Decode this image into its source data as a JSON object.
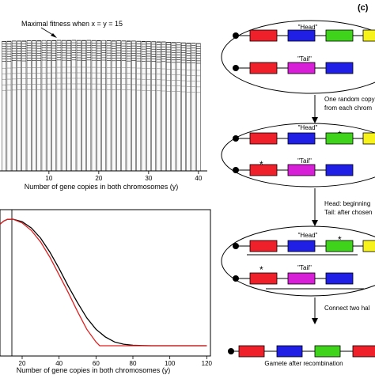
{
  "top_left": {
    "annotation": "Maximal fitness when x = y = 15",
    "xlabel": "Number of gene copies in both chromosomes (y)"
  },
  "bottom_left": {
    "xlabel": "Number of gene copies in both chromosomes (y)"
  },
  "panel_c": {
    "label": "(c)",
    "head_label": "\"Head\"",
    "tail_label": "\"Tail\"",
    "step1_lines": [
      "One random copy",
      "from each chrom"
    ],
    "step2_lines": [
      "Head: beginning",
      "Tail: after chosen"
    ],
    "step3_label": "Connect two hal",
    "gamete_label": "Gamete after recombination",
    "asterisk": "*"
  },
  "colors": {
    "red": "#f0202a",
    "blue": "#1f1fe6",
    "green": "#3fd31c",
    "yellow": "#f6f21a",
    "magenta": "#d81fd8",
    "curve_black": "#000000",
    "curve_red": "#e02020"
  },
  "chart_data": [
    {
      "type": "bar",
      "x": [
        1,
        2,
        3,
        4,
        5,
        6,
        7,
        8,
        9,
        10,
        11,
        12,
        13,
        14,
        15,
        16,
        17,
        18,
        19,
        20,
        21,
        22,
        23,
        24,
        25,
        26,
        27,
        28,
        29,
        30,
        31,
        32,
        33,
        34,
        35,
        36,
        37,
        38,
        39,
        40
      ],
      "description_of_series": "stacked 3D-like bars, peak at y = 15",
      "xticks": [
        10,
        20,
        30,
        40
      ],
      "xlabel": "Number of gene copies in both chromosomes (y)",
      "annotation": "Maximal fitness when x = y = 15"
    },
    {
      "type": "line",
      "xticks": [
        20,
        40,
        60,
        80,
        100,
        120
      ],
      "xlim": [
        8,
        122
      ],
      "vline_x": 15,
      "series": [
        {
          "color": "#000000",
          "x": [
            8,
            10,
            12,
            15,
            20,
            25,
            30,
            35,
            40,
            45,
            50,
            55,
            60,
            65,
            70,
            75,
            80,
            85,
            90,
            120
          ],
          "y": [
            0.96,
            0.985,
            0.998,
            1.0,
            0.98,
            0.93,
            0.85,
            0.74,
            0.61,
            0.47,
            0.34,
            0.22,
            0.13,
            0.07,
            0.03,
            0.012,
            0.004,
            0.001,
            0.0,
            0.0
          ]
        },
        {
          "color": "#e02020",
          "x": [
            8,
            10,
            12,
            15,
            20,
            25,
            30,
            35,
            40,
            45,
            50,
            55,
            60,
            62,
            120
          ],
          "y": [
            0.96,
            0.985,
            0.998,
            1.0,
            0.97,
            0.91,
            0.82,
            0.7,
            0.56,
            0.42,
            0.27,
            0.13,
            0.03,
            0.0,
            0.0
          ]
        }
      ],
      "xlabel": "Number of gene copies in both chromosomes (y)"
    }
  ]
}
